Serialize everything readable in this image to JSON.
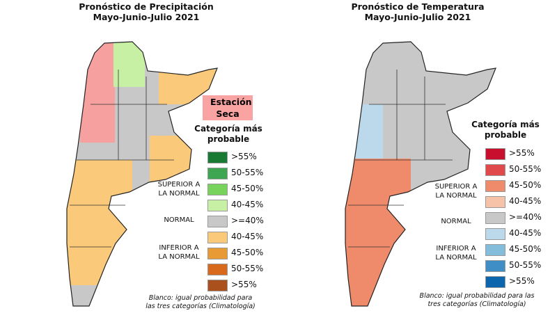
{
  "precip": {
    "title_line1": "Pronóstico de Precipitación",
    "title_line2": "Mayo-Junio-Julio 2021",
    "badge": "Estación Seca",
    "legend_title": "Categoría más probable",
    "legend": [
      {
        "label": ">55%",
        "color": "#1a7a34"
      },
      {
        "label": "50-55%",
        "color": "#3ea650"
      },
      {
        "label": "45-50%",
        "color": "#78d35c"
      },
      {
        "label": "40-45%",
        "color": "#c8f0a4"
      },
      {
        "label": ">=40%",
        "color": "#c8c8c8"
      },
      {
        "label": "40-45%",
        "color": "#fbc97a"
      },
      {
        "label": "45-50%",
        "color": "#e89a34"
      },
      {
        "label": "50-55%",
        "color": "#d86a1e"
      },
      {
        "label": ">55%",
        "color": "#a9501c"
      }
    ],
    "superior": "SUPERIOR A LA NORMAL",
    "normal": "NORMAL",
    "inferior": "INFERIOR A LA NORMAL",
    "note": "Blanco: igual probabilidad para las tres categorías (Climatología)"
  },
  "temp": {
    "title_line1": "Pronóstico de Temperatura",
    "title_line2": "Mayo-Junio-Julio 2021",
    "legend_title": "Categoría más probable",
    "legend": [
      {
        "label": ">55%",
        "color": "#c8102e"
      },
      {
        "label": "50-55%",
        "color": "#e04a4a"
      },
      {
        "label": "45-50%",
        "color": "#ef8a6a"
      },
      {
        "label": "40-45%",
        "color": "#f6c3a8"
      },
      {
        "label": ">=40%",
        "color": "#c8c8c8"
      },
      {
        "label": "40-45%",
        "color": "#bcd9ec"
      },
      {
        "label": "45-50%",
        "color": "#84bcdc"
      },
      {
        "label": "50-55%",
        "color": "#3f8fc6"
      },
      {
        "label": ">55%",
        "color": "#0b66ad"
      }
    ],
    "superior": "SUPERIOR A LA NORMAL",
    "normal": "NORMAL",
    "inferior": "INFERIOR A LA NORMAL",
    "note": "Blanco: igual probabilidad para las tres categorías (Climatología)"
  }
}
